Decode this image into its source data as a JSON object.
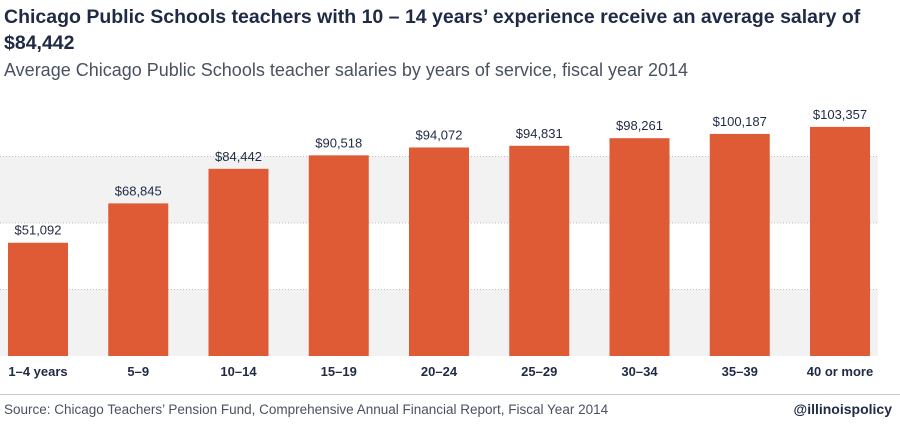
{
  "title": "Chicago Public Schools teachers with 10 – 14 years’ experience receive an average salary of $84,442",
  "subtitle": "Average Chicago Public Schools teacher salaries by years of service, fiscal year 2014",
  "source": "Source: Chicago Teachers’ Pension Fund, Comprehensive Annual Financial Report, Fiscal Year 2014",
  "handle": "@illinoispolicy",
  "chart_data": {
    "type": "bar",
    "categories": [
      "1–4 years",
      "5–9",
      "10–14",
      "15–19",
      "20–24",
      "25–29",
      "30–34",
      "35–39",
      "40 or more"
    ],
    "values": [
      51092,
      68845,
      84442,
      90518,
      94072,
      94831,
      98261,
      100187,
      103357
    ],
    "value_labels": [
      "$51,092",
      "$68,845",
      "$84,442",
      "$90,518",
      "$94,072",
      "$94,831",
      "$98,261",
      "$100,187",
      "$103,357"
    ],
    "ylim": [
      0,
      120000
    ],
    "grid": true,
    "bar_color": "#df5b35",
    "band_color": "#f2f2f2"
  }
}
